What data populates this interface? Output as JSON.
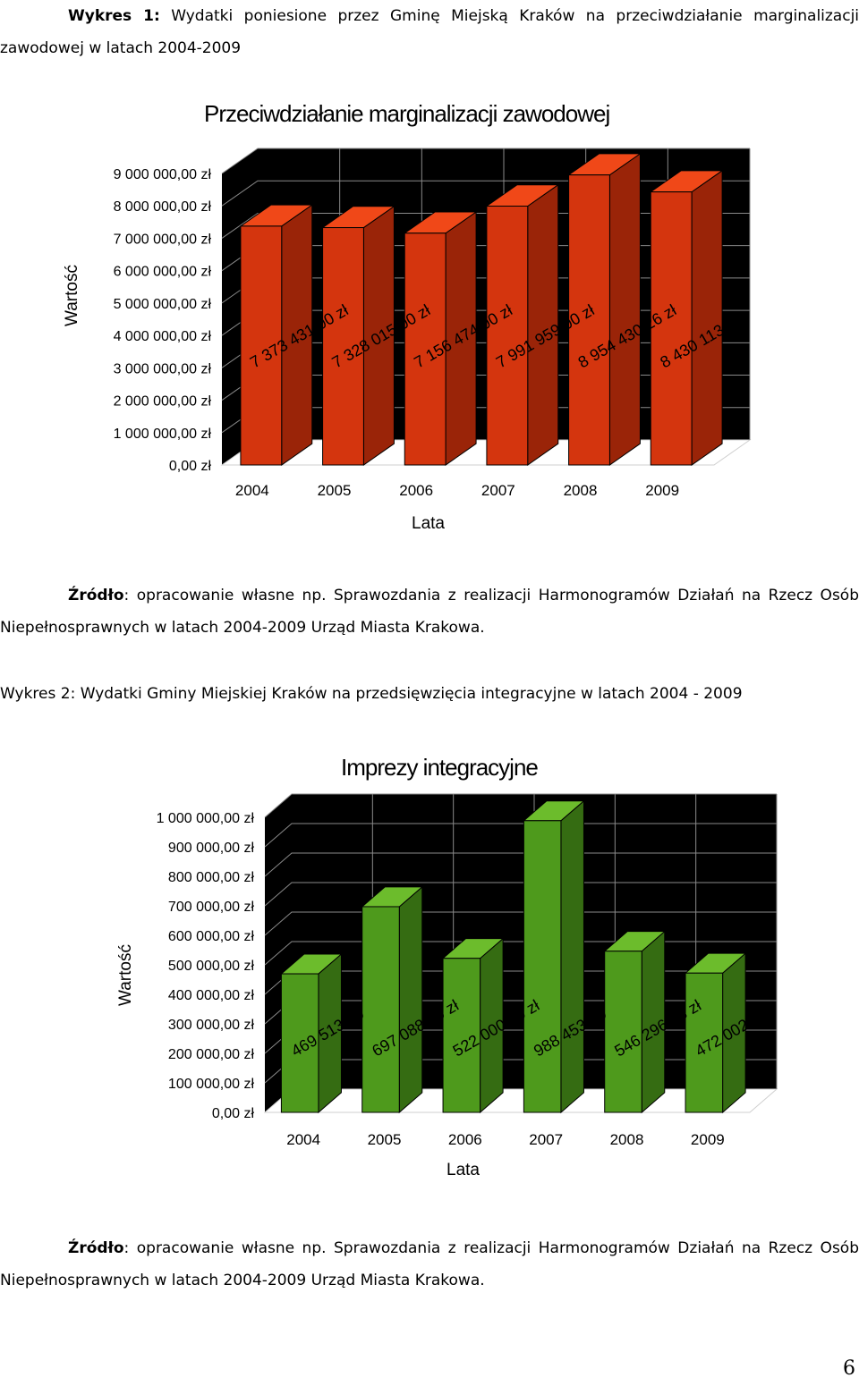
{
  "chart1_caption": {
    "label": "Wykres 1:",
    "text_line1": "Wydatki poniesione przez Gminę Miejską Kraków na przeciwdziałanie marginalizacji",
    "text_line2": "zawodowej w latach 2004-2009"
  },
  "chart1_source": {
    "label": "Źródło",
    "line1": ": opracowanie własne np. Sprawozdania z realizacji Harmonogramów Działań na Rzecz Osób",
    "line2": "Niepełnosprawnych w latach 2004-2009 Urząd Miasta Krakowa."
  },
  "chart2_caption": {
    "label": "Wykres 2",
    "text": ": Wydatki Gminy Miejskiej Kraków na przedsięwzięcia integracyjne w latach 2004 - 2009"
  },
  "chart2_source": {
    "label": "Źródło",
    "line1": ": opracowanie własne np. Sprawozdania z realizacji Harmonogramów Działań na Rzecz Osób",
    "line2": "Niepełnosprawnych w latach 2004-2009 Urząd Miasta Krakowa."
  },
  "page_number": "6",
  "colors": {
    "bar_red_front": "#d4350e",
    "bar_red_side": "#9a2408",
    "bar_red_top": "#f04818",
    "bar_green_front": "#4e9a1c",
    "bar_green_side": "#356c12",
    "bar_green_top": "#6cbc2c",
    "plot_bg": "#000000",
    "grid": "#8a8a8a"
  },
  "chart_data": [
    {
      "type": "bar",
      "title": "Przeciwdziałanie marginalizacji zawodowej",
      "xlabel": "Lata",
      "ylabel": "Wartość",
      "categories": [
        "2004",
        "2005",
        "2006",
        "2007",
        "2008",
        "2009"
      ],
      "values": [
        7373431,
        7328015,
        7156474,
        7991959,
        8954430.26,
        8430113
      ],
      "data_labels": [
        "7 373 431,00 zł",
        "7 328 015,00 zł",
        "7 156 474,00 zł",
        "7 991 959,00 zł",
        "8 954 430,26 zł",
        "8 430 113,00"
      ],
      "ylim": [
        0,
        9000000
      ],
      "yticks": [
        "0,00 zł",
        "1 000 000,00 zł",
        "2 000 000,00 zł",
        "3 000 000,00 zł",
        "4 000 000,00 zł",
        "5 000 000,00 zł",
        "6 000 000,00 zł",
        "7 000 000,00 zł",
        "8 000 000,00 zł",
        "9 000 000,00 zł"
      ],
      "grid": true,
      "legend": "none"
    },
    {
      "type": "bar",
      "title": "Imprezy integracyjne",
      "xlabel": "Lata",
      "ylabel": "Wartość",
      "categories": [
        "2004",
        "2005",
        "2006",
        "2007",
        "2008",
        "2009"
      ],
      "values": [
        469513,
        697088,
        522000,
        988453,
        546296.68,
        472002.82
      ],
      "data_labels": [
        "469 513,00",
        "697 088,00 zł",
        "522 000,00 zł",
        "988 453,00",
        "546 296,68 zł",
        "472 002,82"
      ],
      "ylim": [
        0,
        1000000
      ],
      "yticks": [
        "0,00 zł",
        "100 000,00 zł",
        "200 000,00 zł",
        "300 000,00 zł",
        "400 000,00 zł",
        "500 000,00 zł",
        "600 000,00 zł",
        "700 000,00 zł",
        "800 000,00 zł",
        "900 000,00 zł",
        "1 000 000,00 zł"
      ],
      "grid": true,
      "legend": "none"
    }
  ]
}
